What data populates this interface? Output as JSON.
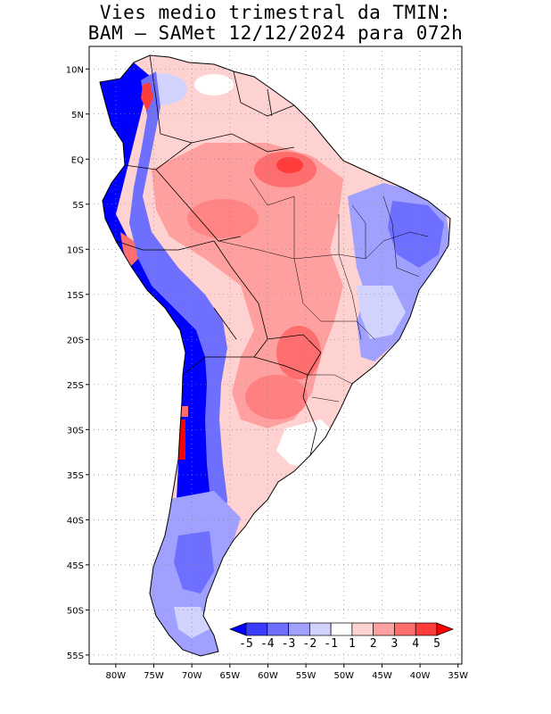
{
  "title": {
    "line1": "Vies medio trimestral da TMIN:",
    "line2": "BAM – SAMet 12/12/2024  para 072h"
  },
  "axes": {
    "lat_labels": [
      "10N",
      "5N",
      "EQ",
      "5S",
      "10S",
      "15S",
      "20S",
      "25S",
      "30S",
      "35S",
      "40S",
      "45S",
      "50S",
      "55S"
    ],
    "lat_values": [
      10,
      5,
      0,
      -5,
      -10,
      -15,
      -20,
      -25,
      -30,
      -35,
      -40,
      -45,
      -50,
      -55
    ],
    "lon_labels": [
      "80W",
      "75W",
      "70W",
      "65W",
      "60W",
      "55W",
      "50W",
      "45W",
      "40W",
      "35W"
    ],
    "lon_values": [
      -80,
      -75,
      -70,
      -65,
      -60,
      -55,
      -50,
      -45,
      -40,
      -35
    ],
    "lon_range": [
      -83.5,
      -34.5
    ],
    "lat_range": [
      12.5,
      -56
    ],
    "grid": "dotted"
  },
  "colorbar": {
    "labels": [
      "-5",
      "-4",
      "-3",
      "-2",
      "-1",
      "1",
      "2",
      "3",
      "4",
      "5"
    ],
    "colors": [
      "#0000ff",
      "#3c3cff",
      "#6e6eff",
      "#a0a0ff",
      "#d2d2ff",
      "#ffffff",
      "#ffd2d2",
      "#ffa0a0",
      "#ff6e6e",
      "#ff3c3c",
      "#ff0000"
    ]
  },
  "regions": {
    "ocean": "#ffffff",
    "positive_bias": "Amazon basin, central Brazil, Paraguay, northern Argentina",
    "negative_bias": "Andes, northeastern Brazil, Patagonia"
  }
}
